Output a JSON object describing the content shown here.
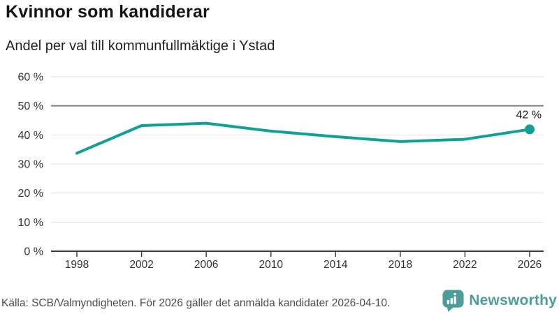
{
  "header": {
    "title": "Kvinnor som kandiderar",
    "subtitle": "Andel per val till kommunfullmäktige i Ystad"
  },
  "chart_data": {
    "type": "line",
    "title": "Kvinnor som kandiderar",
    "subtitle": "Andel per val till kommunfullmäktige i Ystad",
    "x": [
      1998,
      2002,
      2006,
      2010,
      2014,
      2018,
      2022,
      2026
    ],
    "x_tick_labels": [
      "1998",
      "2002",
      "2006",
      "2010",
      "2014",
      "2018",
      "2022",
      "2026"
    ],
    "values": [
      33.7,
      43.2,
      44.0,
      41.3,
      39.4,
      37.7,
      38.5,
      41.9
    ],
    "unit": "%",
    "ylim": [
      0,
      60
    ],
    "y_tick_values": [
      0,
      10,
      20,
      30,
      40,
      50,
      60
    ],
    "y_tick_labels": [
      "0 %",
      "10 %",
      "20 %",
      "30 %",
      "40 %",
      "50 %",
      "60 %"
    ],
    "end_label": "42 %",
    "reference_line": 50,
    "grid": true,
    "legend": "none",
    "line_color": "#10a194",
    "grid_color": "#e2e2e2",
    "reference_line_color": "#7d7d7d",
    "axis_color": "#3a3a3a",
    "tick_label_color": "#333333",
    "end_label_color": "#1a1a1a"
  },
  "footer": {
    "source": "Källa: SCB/Valmyndigheten. För 2026 gäller det anmälda kandidater 2026-04-10.",
    "logo_text": "Newsworthy",
    "logo_color": "#4e9d9a"
  }
}
